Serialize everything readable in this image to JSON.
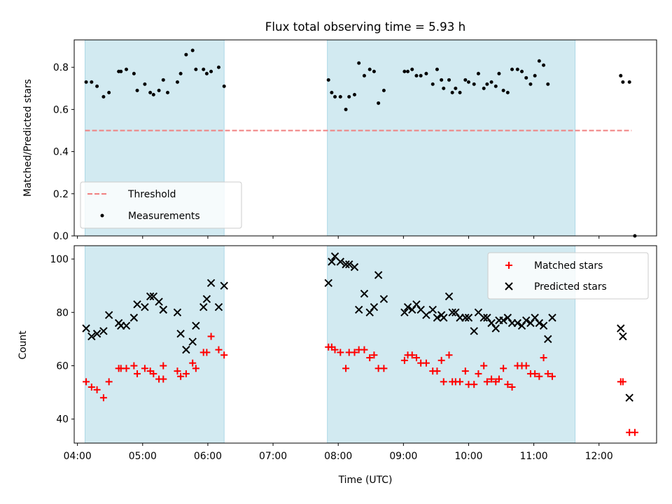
{
  "chart_data": [
    {
      "type": "scatter",
      "title": "Flux total observing time = 5.93 h",
      "xlabel": "",
      "ylabel": "Matched/Predicted stars",
      "ylim": [
        0,
        0.93
      ],
      "xlim": [
        "03:57",
        "12:53"
      ],
      "yticks": [
        "0.0",
        "0.2",
        "0.4",
        "0.6",
        "0.8"
      ],
      "shaded_intervals": [
        [
          "04:07",
          "06:15"
        ],
        [
          "07:50",
          "11:38"
        ]
      ],
      "shade_color": "#add8e6",
      "legend_position": "lower left",
      "threshold": {
        "name": "Threshold",
        "y": 0.5,
        "x_start": "04:07",
        "x_end": "12:30",
        "color": "#f08080"
      },
      "series": [
        {
          "name": "Measurements",
          "color": "#000000",
          "points": [
            [
              "04:08",
              0.73
            ],
            [
              "04:13",
              0.73
            ],
            [
              "04:18",
              0.71
            ],
            [
              "04:24",
              0.66
            ],
            [
              "04:29",
              0.68
            ],
            [
              "04:38",
              0.78
            ],
            [
              "04:40",
              0.78
            ],
            [
              "04:45",
              0.79
            ],
            [
              "04:52",
              0.77
            ],
            [
              "04:55",
              0.69
            ],
            [
              "05:02",
              0.72
            ],
            [
              "05:07",
              0.68
            ],
            [
              "05:10",
              0.67
            ],
            [
              "05:15",
              0.69
            ],
            [
              "05:19",
              0.74
            ],
            [
              "05:23",
              0.68
            ],
            [
              "05:32",
              0.73
            ],
            [
              "05:35",
              0.77
            ],
            [
              "05:40",
              0.86
            ],
            [
              "05:46",
              0.88
            ],
            [
              "05:49",
              0.79
            ],
            [
              "05:56",
              0.79
            ],
            [
              "05:59",
              0.77
            ],
            [
              "06:03",
              0.78
            ],
            [
              "06:10",
              0.8
            ],
            [
              "06:15",
              0.71
            ],
            [
              "07:51",
              0.74
            ],
            [
              "07:54",
              0.68
            ],
            [
              "07:57",
              0.66
            ],
            [
              "08:02",
              0.66
            ],
            [
              "08:07",
              0.6
            ],
            [
              "08:10",
              0.66
            ],
            [
              "08:15",
              0.67
            ],
            [
              "08:19",
              0.82
            ],
            [
              "08:24",
              0.76
            ],
            [
              "08:29",
              0.79
            ],
            [
              "08:33",
              0.78
            ],
            [
              "08:37",
              0.63
            ],
            [
              "08:42",
              0.69
            ],
            [
              "09:01",
              0.78
            ],
            [
              "09:04",
              0.78
            ],
            [
              "09:08",
              0.79
            ],
            [
              "09:12",
              0.76
            ],
            [
              "09:16",
              0.76
            ],
            [
              "09:21",
              0.77
            ],
            [
              "09:27",
              0.72
            ],
            [
              "09:31",
              0.79
            ],
            [
              "09:35",
              0.74
            ],
            [
              "09:37",
              0.7
            ],
            [
              "09:42",
              0.74
            ],
            [
              "09:45",
              0.68
            ],
            [
              "09:48",
              0.7
            ],
            [
              "09:52",
              0.68
            ],
            [
              "09:57",
              0.74
            ],
            [
              "10:00",
              0.73
            ],
            [
              "10:05",
              0.72
            ],
            [
              "10:09",
              0.77
            ],
            [
              "10:14",
              0.7
            ],
            [
              "10:17",
              0.72
            ],
            [
              "10:21",
              0.73
            ],
            [
              "10:25",
              0.71
            ],
            [
              "10:28",
              0.77
            ],
            [
              "10:32",
              0.69
            ],
            [
              "10:36",
              0.68
            ],
            [
              "10:40",
              0.79
            ],
            [
              "10:45",
              0.79
            ],
            [
              "10:49",
              0.78
            ],
            [
              "10:53",
              0.75
            ],
            [
              "10:57",
              0.72
            ],
            [
              "11:01",
              0.76
            ],
            [
              "11:05",
              0.83
            ],
            [
              "11:09",
              0.81
            ],
            [
              "11:13",
              0.72
            ],
            [
              "12:20",
              0.76
            ],
            [
              "12:22",
              0.73
            ],
            [
              "12:28",
              0.73
            ],
            [
              "12:33",
              0.0
            ]
          ]
        }
      ]
    },
    {
      "type": "scatter",
      "xlabel": "Time (UTC)",
      "ylabel": "Count",
      "ylim": [
        31,
        105
      ],
      "xlim": [
        "03:57",
        "12:53"
      ],
      "yticks": [
        "40",
        "60",
        "80",
        "100"
      ],
      "xticks": [
        "04:00",
        "05:00",
        "06:00",
        "07:00",
        "08:00",
        "09:00",
        "10:00",
        "11:00",
        "12:00"
      ],
      "shaded_intervals": [
        [
          "04:07",
          "06:15"
        ],
        [
          "07:50",
          "11:38"
        ]
      ],
      "shade_color": "#add8e6",
      "legend_position": "upper right",
      "series": [
        {
          "name": "Matched stars",
          "color": "#ff0000",
          "points": [
            [
              "04:08",
              54
            ],
            [
              "04:13",
              52
            ],
            [
              "04:18",
              51
            ],
            [
              "04:24",
              48
            ],
            [
              "04:29",
              54
            ],
            [
              "04:38",
              59
            ],
            [
              "04:40",
              59
            ],
            [
              "04:45",
              59
            ],
            [
              "04:52",
              60
            ],
            [
              "04:55",
              57
            ],
            [
              "05:02",
              59
            ],
            [
              "05:07",
              58
            ],
            [
              "05:10",
              57
            ],
            [
              "05:15",
              55
            ],
            [
              "05:19",
              60
            ],
            [
              "05:19",
              55
            ],
            [
              "05:32",
              58
            ],
            [
              "05:35",
              56
            ],
            [
              "05:40",
              57
            ],
            [
              "05:46",
              61
            ],
            [
              "05:49",
              59
            ],
            [
              "05:56",
              65
            ],
            [
              "05:59",
              65
            ],
            [
              "06:03",
              71
            ],
            [
              "06:10",
              66
            ],
            [
              "06:15",
              64
            ],
            [
              "07:51",
              67
            ],
            [
              "07:54",
              67
            ],
            [
              "07:57",
              66
            ],
            [
              "08:02",
              65
            ],
            [
              "08:07",
              59
            ],
            [
              "08:10",
              65
            ],
            [
              "08:15",
              65
            ],
            [
              "08:19",
              66
            ],
            [
              "08:24",
              66
            ],
            [
              "08:29",
              63
            ],
            [
              "08:33",
              64
            ],
            [
              "08:37",
              59
            ],
            [
              "08:42",
              59
            ],
            [
              "09:01",
              62
            ],
            [
              "09:04",
              64
            ],
            [
              "09:08",
              64
            ],
            [
              "09:12",
              63
            ],
            [
              "09:16",
              61
            ],
            [
              "09:21",
              61
            ],
            [
              "09:27",
              58
            ],
            [
              "09:31",
              58
            ],
            [
              "09:35",
              62
            ],
            [
              "09:37",
              54
            ],
            [
              "09:42",
              64
            ],
            [
              "09:45",
              54
            ],
            [
              "09:48",
              54
            ],
            [
              "09:52",
              54
            ],
            [
              "09:57",
              58
            ],
            [
              "10:00",
              53
            ],
            [
              "10:05",
              53
            ],
            [
              "10:09",
              57
            ],
            [
              "10:14",
              60
            ],
            [
              "10:17",
              54
            ],
            [
              "10:21",
              55
            ],
            [
              "10:25",
              54
            ],
            [
              "10:28",
              55
            ],
            [
              "10:32",
              59
            ],
            [
              "10:36",
              53
            ],
            [
              "10:40",
              52
            ],
            [
              "10:45",
              60
            ],
            [
              "10:49",
              60
            ],
            [
              "10:53",
              60
            ],
            [
              "10:57",
              57
            ],
            [
              "11:01",
              57
            ],
            [
              "11:05",
              56
            ],
            [
              "11:09",
              63
            ],
            [
              "11:13",
              57
            ],
            [
              "11:17",
              56
            ],
            [
              "12:20",
              54
            ],
            [
              "12:22",
              54
            ],
            [
              "12:28",
              35
            ],
            [
              "12:33",
              35
            ]
          ]
        },
        {
          "name": "Predicted stars",
          "color": "#000000",
          "points": [
            [
              "04:08",
              74
            ],
            [
              "04:13",
              71
            ],
            [
              "04:18",
              72
            ],
            [
              "04:24",
              73
            ],
            [
              "04:29",
              79
            ],
            [
              "04:38",
              76
            ],
            [
              "04:40",
              75
            ],
            [
              "04:45",
              75
            ],
            [
              "04:52",
              78
            ],
            [
              "04:55",
              83
            ],
            [
              "05:02",
              82
            ],
            [
              "05:07",
              86
            ],
            [
              "05:10",
              86
            ],
            [
              "05:15",
              84
            ],
            [
              "05:19",
              81
            ],
            [
              "05:19",
              81
            ],
            [
              "05:32",
              80
            ],
            [
              "05:35",
              72
            ],
            [
              "05:40",
              66
            ],
            [
              "05:46",
              69
            ],
            [
              "05:49",
              75
            ],
            [
              "05:56",
              82
            ],
            [
              "05:59",
              85
            ],
            [
              "06:03",
              91
            ],
            [
              "06:10",
              82
            ],
            [
              "06:15",
              90
            ],
            [
              "07:51",
              91
            ],
            [
              "07:54",
              99
            ],
            [
              "07:57",
              101
            ],
            [
              "08:02",
              99
            ],
            [
              "08:07",
              98
            ],
            [
              "08:10",
              98
            ],
            [
              "08:15",
              97
            ],
            [
              "08:19",
              81
            ],
            [
              "08:24",
              87
            ],
            [
              "08:29",
              80
            ],
            [
              "08:33",
              82
            ],
            [
              "08:37",
              94
            ],
            [
              "08:42",
              85
            ],
            [
              "09:01",
              80
            ],
            [
              "09:04",
              82
            ],
            [
              "09:08",
              81
            ],
            [
              "09:12",
              83
            ],
            [
              "09:16",
              81
            ],
            [
              "09:21",
              79
            ],
            [
              "09:27",
              81
            ],
            [
              "09:31",
              78
            ],
            [
              "09:35",
              79
            ],
            [
              "09:37",
              78
            ],
            [
              "09:42",
              86
            ],
            [
              "09:45",
              80
            ],
            [
              "09:48",
              80
            ],
            [
              "09:52",
              78
            ],
            [
              "09:57",
              78
            ],
            [
              "10:00",
              78
            ],
            [
              "10:05",
              73
            ],
            [
              "10:09",
              80
            ],
            [
              "10:14",
              78
            ],
            [
              "10:17",
              78
            ],
            [
              "10:21",
              76
            ],
            [
              "10:25",
              74
            ],
            [
              "10:28",
              77
            ],
            [
              "10:32",
              77
            ],
            [
              "10:36",
              78
            ],
            [
              "10:40",
              76
            ],
            [
              "10:45",
              76
            ],
            [
              "10:49",
              75
            ],
            [
              "10:53",
              77
            ],
            [
              "10:57",
              76
            ],
            [
              "11:01",
              78
            ],
            [
              "11:05",
              76
            ],
            [
              "11:09",
              75
            ],
            [
              "11:13",
              70
            ],
            [
              "11:17",
              78
            ],
            [
              "12:20",
              74
            ],
            [
              "12:22",
              71
            ],
            [
              "12:28",
              48
            ]
          ]
        }
      ]
    }
  ]
}
